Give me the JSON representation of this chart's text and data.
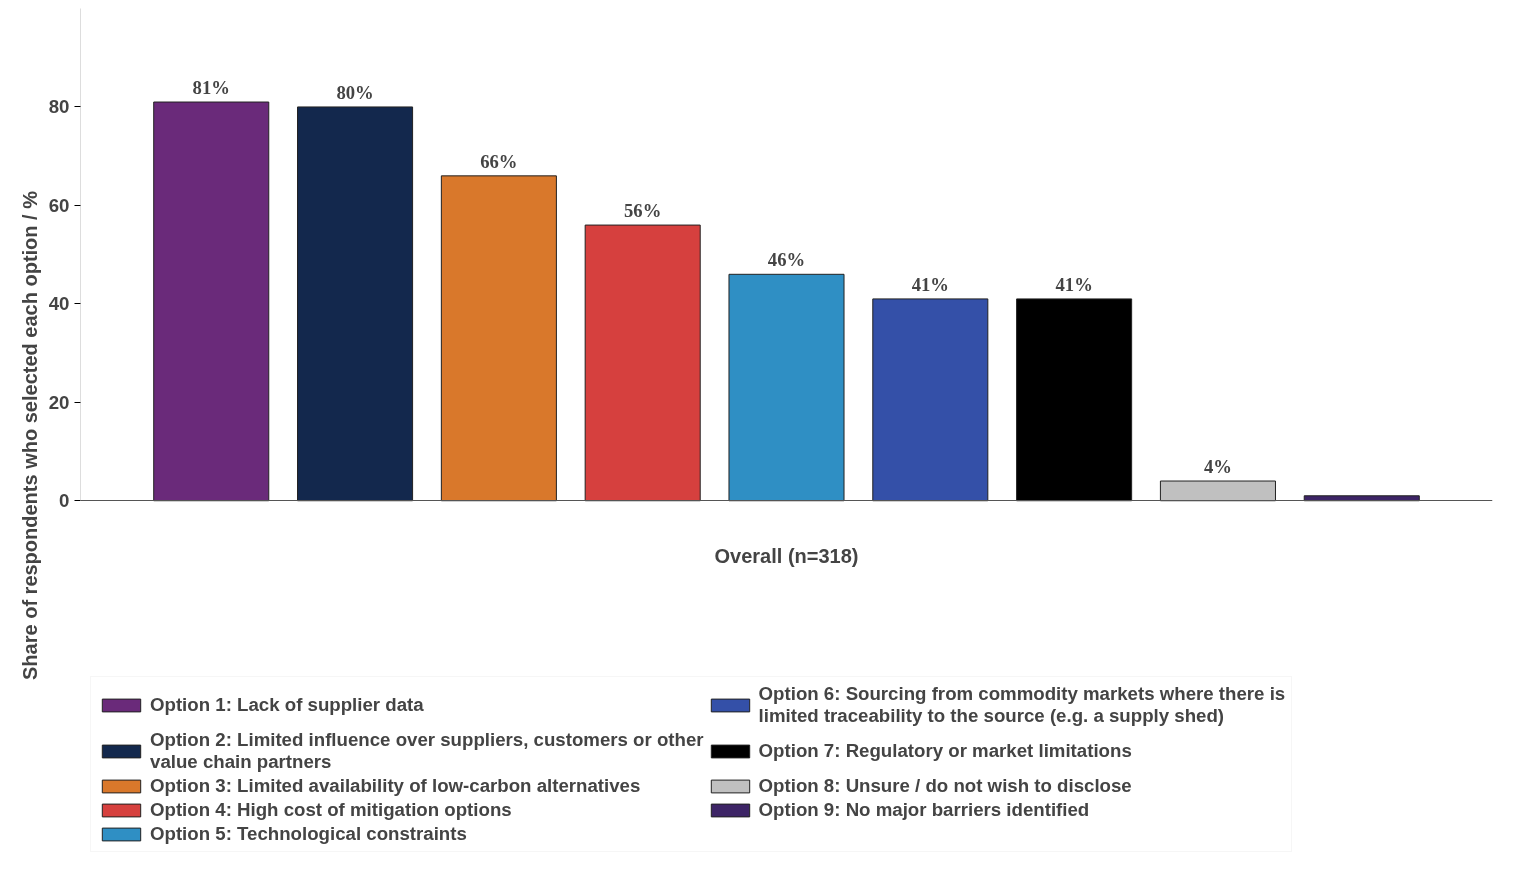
{
  "chart_data": {
    "type": "bar",
    "ylabel": "Share of respondents who selected each option / %",
    "categories": [
      "Overall (n=318)"
    ],
    "ylim": [
      0,
      100
    ],
    "yticks": [
      0,
      20,
      40,
      60,
      80
    ],
    "grid": false,
    "legend": "bottom",
    "series": [
      {
        "name": "Option 1: Lack of supplier data",
        "color": "#6a2a7a",
        "values": [
          81
        ],
        "value_labels": [
          "81%"
        ]
      },
      {
        "name": "Option 2: Limited influence over suppliers, customers or other value chain partners",
        "color": "#13284d",
        "values": [
          80
        ],
        "value_labels": [
          "80%"
        ]
      },
      {
        "name": "Option 3: Limited availability of low-carbon alternatives",
        "color": "#d9782b",
        "values": [
          66
        ],
        "value_labels": [
          "66%"
        ]
      },
      {
        "name": "Option 4: High cost of mitigation options",
        "color": "#d6403e",
        "values": [
          56
        ],
        "value_labels": [
          "56%"
        ]
      },
      {
        "name": "Option 5: Technological constraints",
        "color": "#2f8fc4",
        "values": [
          46
        ],
        "value_labels": [
          "46%"
        ]
      },
      {
        "name": "Option 6: Sourcing from commodity markets where there is limited traceability to the source (e.g. a supply shed)",
        "color": "#3450a8",
        "values": [
          41
        ],
        "value_labels": [
          "41%"
        ]
      },
      {
        "name": "Option 7: Regulatory or market limitations",
        "color": "#000000",
        "values": [
          41
        ],
        "value_labels": [
          "41%"
        ]
      },
      {
        "name": "Option 8: Unsure / do not wish to disclose",
        "color": "#c0c0c0",
        "values": [
          4
        ],
        "value_labels": [
          "4%"
        ]
      },
      {
        "name": "Option 9: No major barriers identified",
        "color": "#3d2466",
        "values": [
          1
        ],
        "value_labels": [
          null
        ]
      }
    ]
  }
}
